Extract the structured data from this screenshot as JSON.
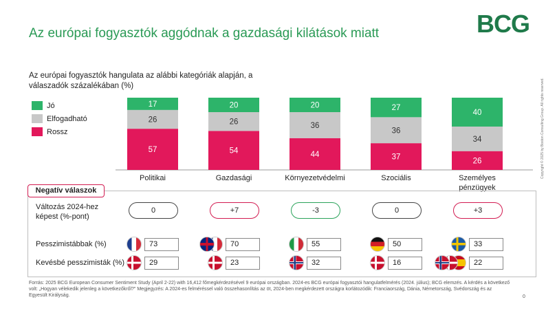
{
  "title": "Az európai fogyasztók aggódnak a gazdasági kilátások miatt",
  "logo": "BCG",
  "subtitle": "Az európai fogyasztók hangulata az alábbi kategóriák alapján, a válaszadók százalékában (%)",
  "colors": {
    "good": "#2db46a",
    "neutral": "#c8c8c8",
    "bad": "#e2185b",
    "title": "#2a9a55"
  },
  "chart_data": {
    "type": "bar",
    "stacked": true,
    "categories": [
      "Politikai",
      "Gazdasági",
      "Környezetvédelmi",
      "Szociális",
      "Személyes pénzügyek"
    ],
    "series": [
      {
        "name": "Rossz",
        "values": [
          57,
          54,
          44,
          37,
          26
        ]
      },
      {
        "name": "Elfogadható",
        "values": [
          26,
          26,
          36,
          36,
          34
        ]
      },
      {
        "name": "Jó",
        "values": [
          17,
          20,
          20,
          27,
          40
        ]
      }
    ],
    "legend": [
      "Jó",
      "Elfogadható",
      "Rossz"
    ],
    "legend_position": "left",
    "ylim": [
      0,
      100
    ]
  },
  "negative": {
    "header": "Negatív válaszok",
    "change_label": "Változás 2024-hez képest (%-pont)",
    "changes": [
      "0",
      "+7",
      "-3",
      "0",
      "+3"
    ],
    "change_types": [
      "neutral",
      "plus",
      "minus",
      "neutral",
      "plus"
    ],
    "pess_more_label": "Pesszimistábbak (%)",
    "pess_more_values": [
      "73",
      "70",
      "55",
      "50",
      "33"
    ],
    "pess_more_flags": [
      [
        "france"
      ],
      [
        "uk",
        "france"
      ],
      [
        "italy"
      ],
      [
        "germany"
      ],
      [
        "sweden"
      ]
    ],
    "pess_less_label": "Kevésbé pesszimisták (%)",
    "pess_less_values": [
      "29",
      "23",
      "32",
      "16",
      "22"
    ],
    "pess_less_flags": [
      [
        "denmark"
      ],
      [
        "denmark"
      ],
      [
        "norway"
      ],
      [
        "denmark"
      ],
      [
        "norway",
        "denmark",
        "spain"
      ]
    ]
  },
  "source": "Forrás: 2025 BCG European Consumer Sentiment Study (April 2-22) with 16,412 főmegkérdezésével 9 európai országban. 2024-es BCG európai fogyasztói hangulatfelmérés (2024. július); BCG elemzés. A kérdés a következő volt: „Hogyan vélekedik jelenleg a következőkről?\" Megjegyzés: A 2024-es felméréssel való összehasonlítás az öt, 2024-ben megkérdezett országra korlátozódik: Franciaország, Dánia, Németország, Svédország és az Egyesült Királyság.",
  "page_number": "0",
  "copyright": "Copyright © 2025 by Boston Consulting Group. All rights reserved."
}
